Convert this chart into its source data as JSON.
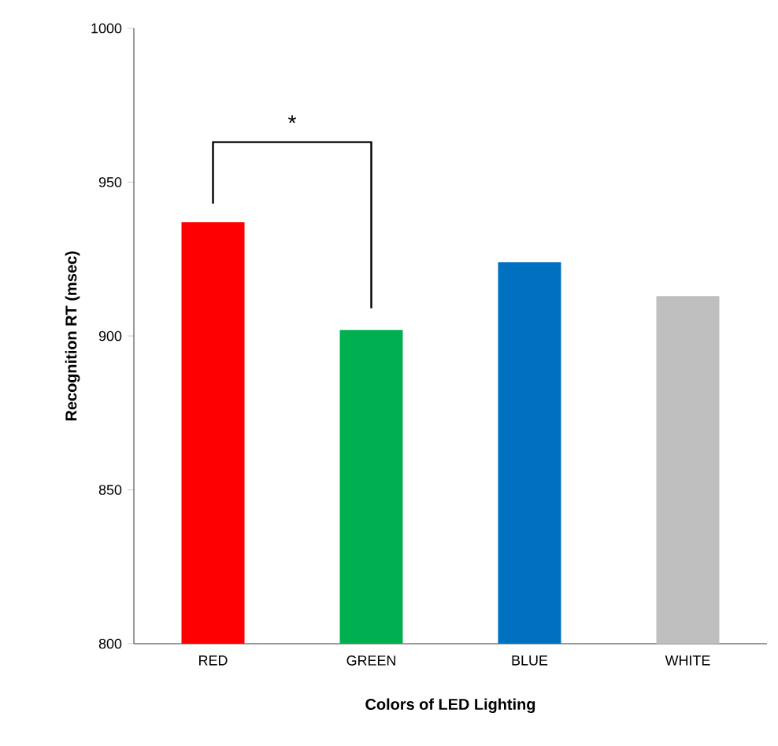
{
  "chart_data": {
    "type": "bar",
    "xlabel": "Colors of LED Lighting",
    "ylabel": "Recognition RT (msec)",
    "categories": [
      "RED",
      "GREEN",
      "BLUE",
      "WHITE"
    ],
    "values": [
      937,
      902,
      924,
      913
    ],
    "colors": [
      "#ff0000",
      "#00b050",
      "#0070c0",
      "#bfbfbf"
    ],
    "ylim": [
      800,
      1000
    ],
    "yticks": [
      800,
      850,
      900,
      950,
      1000
    ],
    "annotations": [
      "*"
    ]
  }
}
